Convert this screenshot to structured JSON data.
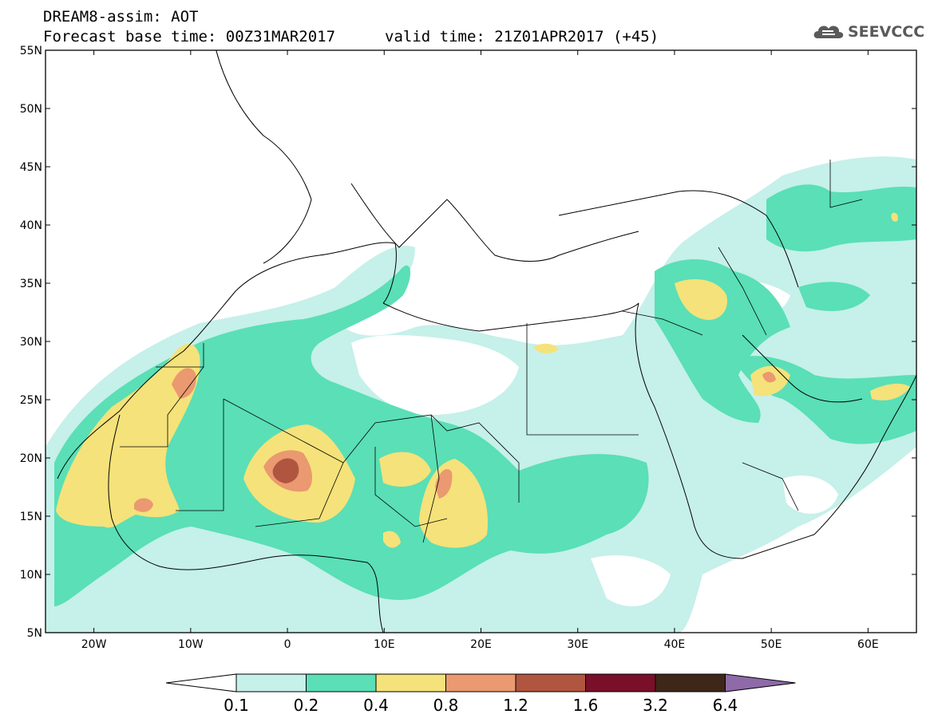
{
  "header": {
    "title_line1": "DREAM8-assim: AOT",
    "title_line2_base": "Forecast base time: 00Z31MAR2017",
    "title_line2_valid": "valid time: 21Z01APR2017 (+45)",
    "logo_text": "SEEVCCC",
    "logo_icon": "cloud-logo-icon"
  },
  "map": {
    "lon_range": [
      -25,
      65
    ],
    "lat_range": [
      5,
      55
    ],
    "lat_labels": [
      "55N",
      "50N",
      "45N",
      "40N",
      "35N",
      "30N",
      "25N",
      "20N",
      "15N",
      "10N",
      "5N"
    ],
    "lat_values": [
      55,
      50,
      45,
      40,
      35,
      30,
      25,
      20,
      15,
      10,
      5
    ],
    "lon_labels": [
      "20W",
      "10W",
      "0",
      "10E",
      "20E",
      "30E",
      "40E",
      "50E",
      "60E"
    ],
    "lon_values": [
      -20,
      -10,
      0,
      10,
      20,
      30,
      40,
      50,
      60
    ]
  },
  "colorbar": {
    "levels": [
      "0.1",
      "0.2",
      "0.4",
      "0.8",
      "1.2",
      "1.6",
      "3.2",
      "6.4"
    ],
    "colors": [
      "#ffffff",
      "#c6f0ea",
      "#5adfb6",
      "#f5e27a",
      "#ea9970",
      "#b0553f",
      "#7a0f2a",
      "#3e2718",
      "#8e6aa8"
    ]
  }
}
